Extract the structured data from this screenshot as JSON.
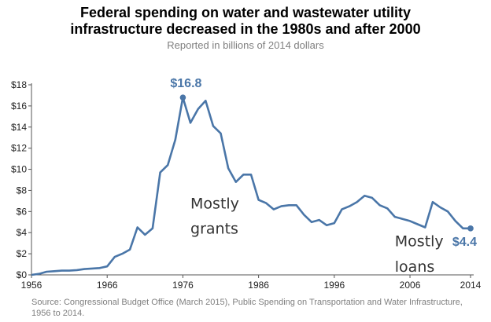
{
  "chart_data": {
    "type": "line",
    "title_lines": [
      "Federal spending on water and wastewater utility",
      "infrastructure decreased in the 1980s and after 2000"
    ],
    "subtitle": "Reported in billions of 2014 dollars",
    "source_lines": [
      "Source: Congressional Budget Office (March 2015), Public Spending on Transportation and Water Infrastructure,",
      "1956 to 2014."
    ],
    "x_ticks": [
      1956,
      1966,
      1976,
      1986,
      1996,
      2006,
      2014
    ],
    "x_tick_labels": [
      "1956",
      "1966",
      "1976",
      "1986",
      "1996",
      "2006",
      "2014"
    ],
    "y_ticks": [
      0,
      2,
      4,
      6,
      8,
      10,
      12,
      14,
      16,
      18
    ],
    "y_tick_labels": [
      "$0",
      "$2",
      "$4",
      "$6",
      "$8",
      "$10",
      "$12",
      "$14",
      "$16",
      "$18"
    ],
    "xlim": [
      1956,
      2014
    ],
    "ylim": [
      0,
      18
    ],
    "grid": false,
    "line_color": "#4a76a8",
    "x": [
      1956,
      1957,
      1958,
      1959,
      1960,
      1961,
      1962,
      1963,
      1964,
      1965,
      1966,
      1967,
      1968,
      1969,
      1970,
      1971,
      1972,
      1973,
      1974,
      1975,
      1976,
      1977,
      1978,
      1979,
      1980,
      1981,
      1982,
      1983,
      1984,
      1985,
      1986,
      1987,
      1988,
      1989,
      1990,
      1991,
      1992,
      1993,
      1994,
      1995,
      1996,
      1997,
      1998,
      1999,
      2000,
      2001,
      2002,
      2003,
      2004,
      2005,
      2006,
      2007,
      2008,
      2009,
      2010,
      2011,
      2012,
      2013,
      2014
    ],
    "values": [
      0.0,
      0.1,
      0.3,
      0.35,
      0.4,
      0.4,
      0.45,
      0.55,
      0.6,
      0.65,
      0.8,
      1.7,
      2.0,
      2.4,
      4.5,
      3.8,
      4.4,
      9.7,
      10.4,
      12.8,
      16.8,
      14.4,
      15.7,
      16.5,
      14.1,
      13.4,
      10.1,
      8.8,
      9.5,
      9.5,
      7.1,
      6.8,
      6.2,
      6.5,
      6.6,
      6.6,
      5.7,
      5.0,
      5.2,
      4.7,
      4.9,
      6.2,
      6.5,
      6.9,
      7.5,
      7.3,
      6.6,
      6.3,
      5.5,
      5.3,
      5.1,
      4.8,
      4.5,
      6.9,
      6.4,
      6.0,
      5.1,
      4.4,
      4.4
    ],
    "callouts": [
      {
        "label": "$16.8",
        "x": 1976,
        "y": 16.8
      },
      {
        "label": "$4.4",
        "x": 2014,
        "y": 4.4
      }
    ],
    "annotations": [
      {
        "text": "Mostly",
        "x": 1977,
        "y": 6.3
      },
      {
        "text": "grants",
        "x": 1977,
        "y": 3.9
      },
      {
        "text": "Mostly",
        "x": 2004,
        "y": 2.7
      },
      {
        "text": "loans",
        "x": 2004,
        "y": 0.3
      }
    ]
  }
}
